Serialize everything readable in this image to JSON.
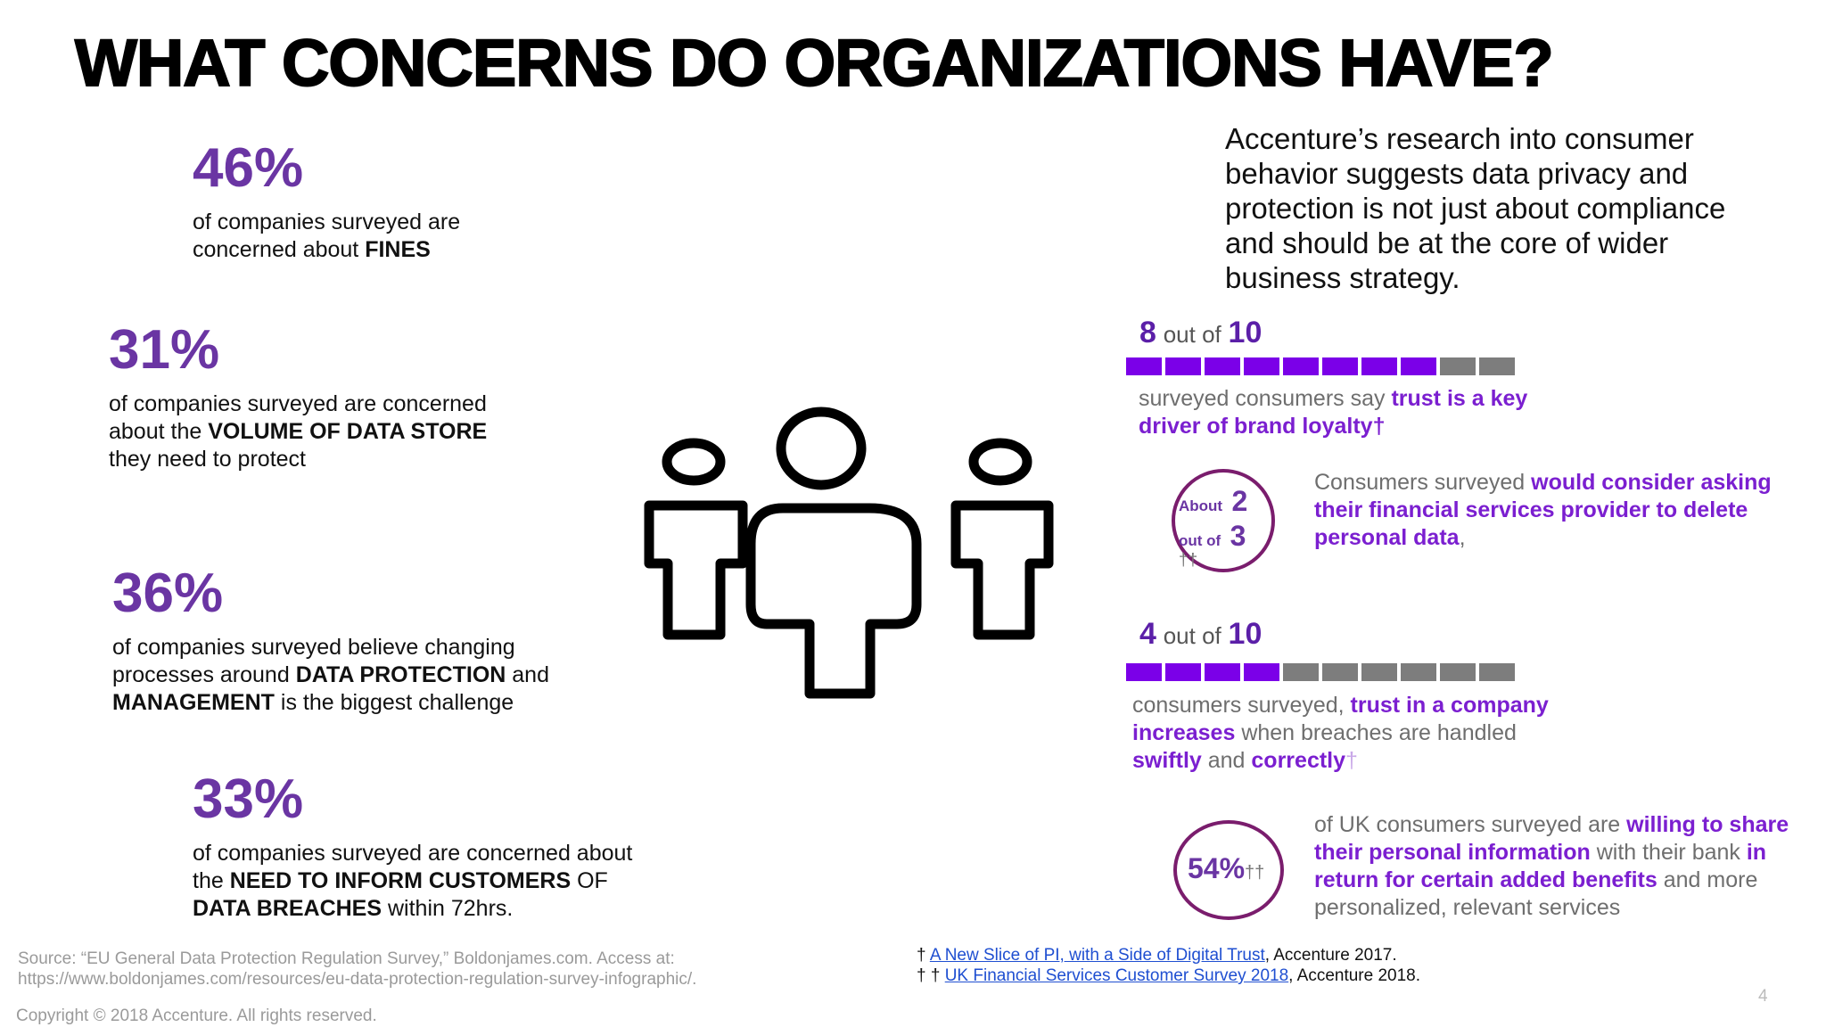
{
  "title": "WHAT CONCERNS DO ORGANIZATIONS HAVE?",
  "stats": [
    {
      "pct": "46%",
      "text_pre": "of companies surveyed are concerned about ",
      "bold1": "FINES",
      "text_mid": "",
      "bold2": "",
      "text_post": ""
    },
    {
      "pct": "31%",
      "text_pre": "of companies surveyed are concerned about the ",
      "bold1": "VOLUME OF DATA STORE",
      "text_mid": " they need to protect",
      "bold2": "",
      "text_post": ""
    },
    {
      "pct": "36%",
      "text_pre": "of companies surveyed believe changing processes around ",
      "bold1": "DATA PROTECTION",
      "text_mid": " and ",
      "bold2": "MANAGEMENT",
      "text_post": " is the biggest challenge"
    },
    {
      "pct": "33%",
      "text_pre": "of companies surveyed are concerned about the ",
      "bold1": "NEED TO INFORM CUSTOMERS",
      "text_mid": " OF ",
      "bold2": "DATA BREACHES",
      "text_post": " within 72hrs."
    }
  ],
  "intro": "Accenture’s research into consumer behavior suggests data privacy and protection is not just about compliance and should be at the core of wider business strategy.",
  "block1": {
    "num": "8",
    "out_of": "out of",
    "den": "10",
    "filled": 8,
    "total": 10,
    "t1": "surveyed consumers say ",
    "p1": "trust is a key driver of brand loyalty",
    "dagger": "†"
  },
  "block2": {
    "about": "About",
    "num": "2",
    "out_of": "out of",
    "den": "3",
    "dagger": "††",
    "t1": "Consumers surveyed ",
    "p1": "would consider asking their financial services provider to delete personal data",
    "t2": ","
  },
  "block3": {
    "num": "4",
    "out_of": "out of",
    "den": "10",
    "filled": 4,
    "total": 10,
    "t1": "consumers surveyed, ",
    "p1": "trust in a company increases",
    "t2": " when breaches are handled ",
    "p2": "swiftly",
    "t3": " and ",
    "p3": "correctly",
    "dagger": "†"
  },
  "block4": {
    "pct": "54%",
    "dagger": "††",
    "t1": "of UK consumers surveyed are ",
    "p1": "willing to share their personal information",
    "t2": " with their bank ",
    "p2": "in return for certain added benefits",
    "t3": " and more personalized, relevant services"
  },
  "source_line1": "Source: “EU General Data Protection Regulation Survey,” Boldonjames.com. Access at:",
  "source_line2": "https://www.boldonjames.com/resources/eu-data-protection-regulation-survey-infographic/.",
  "copyright": "Copyright © 2018 Accenture. All rights reserved.",
  "footnotes": [
    {
      "mark": "†",
      "link": "A New Slice of PI, with a Side of Digital Trust",
      "rest": ", Accenture 2017."
    },
    {
      "mark": "† †",
      "link": "UK Financial Services Customer Survey 2018",
      "rest": ", Accenture 2018."
    }
  ],
  "page_number": "4",
  "colors": {
    "purple": "#6a35a3",
    "bar_on": "#7b00e8",
    "bar_off": "#7d7d7d",
    "ring": "#7a1d6d"
  }
}
